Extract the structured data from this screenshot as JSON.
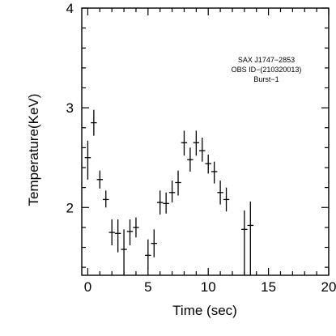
{
  "chart_data": {
    "type": "scatter",
    "style": "error-bars",
    "xlabel": "Time (sec)",
    "ylabel": "Temperature(KeV)",
    "xlim": [
      -0.5,
      20
    ],
    "ylim": [
      1.32,
      4
    ],
    "x_ticks": [
      0,
      5,
      10,
      15,
      20
    ],
    "x_tick_labels": [
      "0",
      "5",
      "10",
      "15",
      "20"
    ],
    "y_ticks": [
      2,
      3,
      4
    ],
    "y_tick_labels": [
      "2",
      "3",
      "4"
    ],
    "x_minor_step": 1,
    "y_minor_step": 0.2,
    "annotations": [
      "SAX J1747−2853",
      "OBS ID−(210320013)",
      "Burst−1"
    ],
    "points": [
      {
        "x": 0.0,
        "y": 2.5,
        "xerr": 0.25,
        "ylo": 2.28,
        "yhi": 2.67
      },
      {
        "x": 0.5,
        "y": 2.85,
        "xerr": 0.25,
        "ylo": 2.72,
        "yhi": 2.98
      },
      {
        "x": 1.0,
        "y": 2.28,
        "xerr": 0.25,
        "ylo": 2.19,
        "yhi": 2.37
      },
      {
        "x": 1.5,
        "y": 2.08,
        "xerr": 0.25,
        "ylo": 2.0,
        "yhi": 2.17
      },
      {
        "x": 2.0,
        "y": 1.75,
        "xerr": 0.25,
        "ylo": 1.62,
        "yhi": 1.88
      },
      {
        "x": 2.5,
        "y": 1.74,
        "xerr": 0.25,
        "ylo": 1.55,
        "yhi": 1.88
      },
      {
        "x": 3.0,
        "y": 1.58,
        "xerr": 0.25,
        "ylo": 1.32,
        "yhi": 1.78
      },
      {
        "x": 3.5,
        "y": 1.76,
        "xerr": 0.25,
        "ylo": 1.62,
        "yhi": 1.88
      },
      {
        "x": 4.0,
        "y": 1.8,
        "xerr": 0.25,
        "ylo": 1.7,
        "yhi": 1.9
      },
      {
        "x": 5.0,
        "y": 1.52,
        "xerr": 0.25,
        "ylo": 1.38,
        "yhi": 1.68
      },
      {
        "x": 5.5,
        "y": 1.64,
        "xerr": 0.25,
        "ylo": 1.5,
        "yhi": 1.78
      },
      {
        "x": 6.0,
        "y": 2.05,
        "xerr": 0.25,
        "ylo": 1.93,
        "yhi": 2.17
      },
      {
        "x": 6.5,
        "y": 2.04,
        "xerr": 0.25,
        "ylo": 1.94,
        "yhi": 2.15
      },
      {
        "x": 7.0,
        "y": 2.15,
        "xerr": 0.25,
        "ylo": 2.05,
        "yhi": 2.27
      },
      {
        "x": 7.5,
        "y": 2.25,
        "xerr": 0.25,
        "ylo": 2.12,
        "yhi": 2.37
      },
      {
        "x": 8.0,
        "y": 2.65,
        "xerr": 0.25,
        "ylo": 2.52,
        "yhi": 2.77
      },
      {
        "x": 8.5,
        "y": 2.48,
        "xerr": 0.25,
        "ylo": 2.36,
        "yhi": 2.6
      },
      {
        "x": 9.0,
        "y": 2.65,
        "xerr": 0.25,
        "ylo": 2.52,
        "yhi": 2.77
      },
      {
        "x": 9.5,
        "y": 2.57,
        "xerr": 0.25,
        "ylo": 2.46,
        "yhi": 2.7
      },
      {
        "x": 10.0,
        "y": 2.44,
        "xerr": 0.25,
        "ylo": 2.34,
        "yhi": 2.53
      },
      {
        "x": 10.5,
        "y": 2.36,
        "xerr": 0.25,
        "ylo": 2.24,
        "yhi": 2.46
      },
      {
        "x": 11.0,
        "y": 2.15,
        "xerr": 0.25,
        "ylo": 2.03,
        "yhi": 2.27
      },
      {
        "x": 11.5,
        "y": 2.08,
        "xerr": 0.25,
        "ylo": 1.96,
        "yhi": 2.2
      },
      {
        "x": 13.0,
        "y": 1.78,
        "xerr": 0.25,
        "ylo": 1.32,
        "yhi": 1.97
      },
      {
        "x": 13.5,
        "y": 1.82,
        "xerr": 0.25,
        "ylo": 1.32,
        "yhi": 2.06
      }
    ]
  }
}
